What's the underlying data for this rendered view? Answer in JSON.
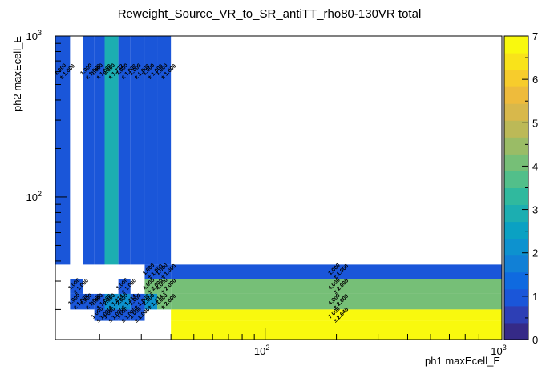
{
  "chart_data": {
    "type": "heatmap",
    "title": "Reweight_Source_VR_to_SR_antiTT_rho80-130VR total",
    "xlabel": "ph1 maxEcell_E",
    "ylabel": "ph2 maxEcell_E",
    "xscale": "log",
    "yscale": "log",
    "xlim": [
      13,
      1000
    ],
    "ylim": [
      13,
      1000
    ],
    "x_ticks": [
      {
        "value": 100,
        "base": "10",
        "exp": "2"
      },
      {
        "value": 1000,
        "base": "10",
        "exp": "3"
      }
    ],
    "y_ticks": [
      {
        "value": 100,
        "base": "10",
        "exp": "2"
      },
      {
        "value": 1000,
        "base": "10",
        "exp": "3"
      }
    ],
    "z_range": [
      0,
      7
    ],
    "z_ticks": [
      "0",
      "1",
      "2",
      "3",
      "4",
      "5",
      "6",
      "7"
    ],
    "x_bin_edges": [
      13,
      15,
      17,
      19,
      21,
      24,
      27,
      31,
      35,
      40,
      1000
    ],
    "y_bin_edges": [
      13,
      17,
      20,
      25,
      31,
      38,
      46,
      1000
    ],
    "cells": [
      {
        "xi": 0,
        "yi": 6,
        "value": 1.0,
        "label": "1.000",
        "err": "± 1.000"
      },
      {
        "xi": 2,
        "yi": 6,
        "value": 1.0,
        "label": "1.000",
        "err": "± 1.000"
      },
      {
        "xi": 3,
        "yi": 6,
        "value": 1.0,
        "label": "1.000",
        "err": "± 1.000"
      },
      {
        "xi": 4,
        "yi": 6,
        "value": 3.0,
        "label": "3.000",
        "err": "± 1.732"
      },
      {
        "xi": 5,
        "yi": 6,
        "value": 1.0,
        "label": "1.000",
        "err": "± 1.000"
      },
      {
        "xi": 6,
        "yi": 6,
        "value": 1.0,
        "label": "1.000",
        "err": "± 1.000"
      },
      {
        "xi": 7,
        "yi": 6,
        "value": 1.0,
        "label": "1.000",
        "err": "± 1.000"
      },
      {
        "xi": 8,
        "yi": 6,
        "value": 1.0,
        "label": "1.000",
        "err": "± 1.000"
      },
      {
        "xi": 0,
        "yi": 5,
        "value": 1.0,
        "label": "",
        "err": ""
      },
      {
        "xi": 2,
        "yi": 5,
        "value": 1.0,
        "label": "",
        "err": ""
      },
      {
        "xi": 3,
        "yi": 5,
        "value": 1.0,
        "label": "",
        "err": ""
      },
      {
        "xi": 4,
        "yi": 5,
        "value": 3.0,
        "label": "",
        "err": ""
      },
      {
        "xi": 5,
        "yi": 5,
        "value": 1.0,
        "label": "",
        "err": ""
      },
      {
        "xi": 6,
        "yi": 5,
        "value": 1.0,
        "label": "",
        "err": ""
      },
      {
        "xi": 7,
        "yi": 5,
        "value": 1.0,
        "label": "",
        "err": ""
      },
      {
        "xi": 8,
        "yi": 5,
        "value": 1.0,
        "label": "",
        "err": ""
      },
      {
        "xi": 7,
        "yi": 4,
        "value": 1.0,
        "label": "1.000",
        "err": "± 1.000"
      },
      {
        "xi": 8,
        "yi": 4,
        "value": 1.0,
        "label": "1.000",
        "err": "± 1.000"
      },
      {
        "xi": 9,
        "yi": 4,
        "value": 1.0,
        "label": "1.000",
        "err": "± 1.000"
      },
      {
        "xi": 1,
        "yi": 3,
        "value": 1.0,
        "label": "1.000",
        "err": "± 1.000"
      },
      {
        "xi": 5,
        "yi": 3,
        "value": 1.0,
        "label": "1.000",
        "err": "± 1.000"
      },
      {
        "xi": 7,
        "yi": 3,
        "value": 4.0,
        "label": "4.000",
        "err": "± 2.000"
      },
      {
        "xi": 8,
        "yi": 3,
        "value": 4.0,
        "label": "4.000",
        "err": "± 2.000"
      },
      {
        "xi": 9,
        "yi": 3,
        "value": 4.0,
        "label": "4.000",
        "err": "± 2.000"
      },
      {
        "xi": 1,
        "yi": 2,
        "value": 1.0,
        "label": "1.000",
        "err": "± 1.000"
      },
      {
        "xi": 2,
        "yi": 2,
        "value": 1.0,
        "label": "1.000",
        "err": "± 1.000"
      },
      {
        "xi": 3,
        "yi": 2,
        "value": 1.0,
        "label": "1.000",
        "err": "± 1.000"
      },
      {
        "xi": 4,
        "yi": 2,
        "value": 2.0,
        "label": "2.000",
        "err": "± 1.414"
      },
      {
        "xi": 5,
        "yi": 2,
        "value": 2.0,
        "label": "2.000",
        "err": "± 1.414"
      },
      {
        "xi": 6,
        "yi": 2,
        "value": 1.0,
        "label": "1.000",
        "err": "± 1.000"
      },
      {
        "xi": 7,
        "yi": 2,
        "value": 2.0,
        "label": "2.000",
        "err": "± 1.414"
      },
      {
        "xi": 8,
        "yi": 2,
        "value": 4.0,
        "label": "4.000",
        "err": "± 2.000"
      },
      {
        "xi": 9,
        "yi": 2,
        "value": 4.0,
        "label": "4.000",
        "err": "± 2.000"
      },
      {
        "xi": 3,
        "yi": 1,
        "value": 1.0,
        "label": "1.000",
        "err": "± 1.000"
      },
      {
        "xi": 4,
        "yi": 1,
        "value": 1.0,
        "label": "1.000",
        "err": "± 1.000"
      },
      {
        "xi": 5,
        "yi": 1,
        "value": 1.0,
        "label": "1.000",
        "err": "± 1.000"
      },
      {
        "xi": 6,
        "yi": 1,
        "value": 1.0,
        "label": "1.000",
        "err": "± 1.000"
      },
      {
        "xi": 9,
        "yi": 1,
        "value": 7.0,
        "label": "7.000",
        "err": "± 2.646"
      },
      {
        "xi": 9,
        "yi": 0,
        "value": 7.0,
        "label": "",
        "err": ""
      }
    ],
    "palette": [
      "#352a87",
      "#2d3fb5",
      "#1a56d9",
      "#0f6ae0",
      "#1180d6",
      "#0d92cf",
      "#0aa1c3",
      "#1caeb1",
      "#30b99e",
      "#52bf8a",
      "#76bf77",
      "#9abc66",
      "#bcb957",
      "#d8b84b",
      "#eebb3c",
      "#f7cc2c",
      "#f9e31a",
      "#f9f90e"
    ]
  }
}
